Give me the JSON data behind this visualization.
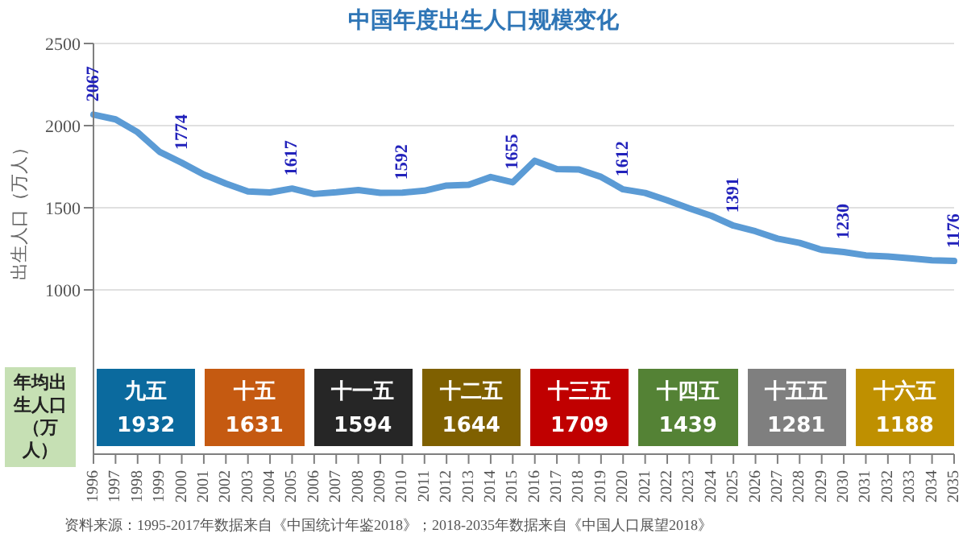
{
  "chart_data": [
    {
      "type": "line",
      "title": "中国年度出生人口规模变化",
      "ylabel": "出生人口（万人）",
      "categories": [
        "1996",
        "1997",
        "1998",
        "1999",
        "2000",
        "2001",
        "2002",
        "2003",
        "2004",
        "2005",
        "2006",
        "2007",
        "2008",
        "2009",
        "2010",
        "2011",
        "2012",
        "2013",
        "2014",
        "2015",
        "2016",
        "2017",
        "2018",
        "2019",
        "2020",
        "2021",
        "2022",
        "2023",
        "2024",
        "2025",
        "2026",
        "2027",
        "2028",
        "2029",
        "2030",
        "2031",
        "2032",
        "2033",
        "2034",
        "2035"
      ],
      "series": [
        {
          "color": "#5b9bd5",
          "values": [
            2067,
            2038,
            1960,
            1840,
            1774,
            1702,
            1647,
            1599,
            1593,
            1617,
            1584,
            1594,
            1608,
            1591,
            1592,
            1604,
            1635,
            1640,
            1687,
            1655,
            1786,
            1735,
            1733,
            1688,
            1612,
            1590,
            1545,
            1496,
            1451,
            1391,
            1357,
            1312,
            1286,
            1244,
            1230,
            1210,
            1203,
            1192,
            1180,
            1176
          ],
          "value_labels": [
            "2067",
            null,
            null,
            null,
            "1774",
            null,
            null,
            null,
            null,
            "1617",
            null,
            null,
            null,
            null,
            "1592",
            null,
            null,
            null,
            null,
            "1655",
            null,
            null,
            null,
            null,
            "1612",
            null,
            null,
            null,
            null,
            "1391",
            null,
            null,
            null,
            null,
            "1230",
            null,
            null,
            null,
            null,
            "1176"
          ]
        }
      ],
      "ylim": [
        0,
        2500
      ],
      "yticks": [
        1000,
        1500,
        2000,
        2500
      ],
      "grid": "y",
      "marker": "none",
      "line_style": "solid",
      "legend": false,
      "annotations": [
        "资料来源：1995-2017年数据来自《中国统计年鉴2018》；2018-2035年数据来自《中国人口展望2018》"
      ]
    },
    {
      "type": "other",
      "ylabel": "年均出生人口（万人）",
      "categories": [
        "九五",
        "十五",
        "十一五",
        "十二五",
        "十三五",
        "十四五",
        "十五五",
        "十六五"
      ],
      "values": [
        1932,
        1631,
        1594,
        1644,
        1709,
        1439,
        1281,
        1188
      ],
      "colors": [
        "#0b6a9e",
        "#c55a11",
        "#262626",
        "#7f6000",
        "#c00000",
        "#548235",
        "#7f7f7f",
        "#bf9000"
      ],
      "data_labels": true
    }
  ]
}
